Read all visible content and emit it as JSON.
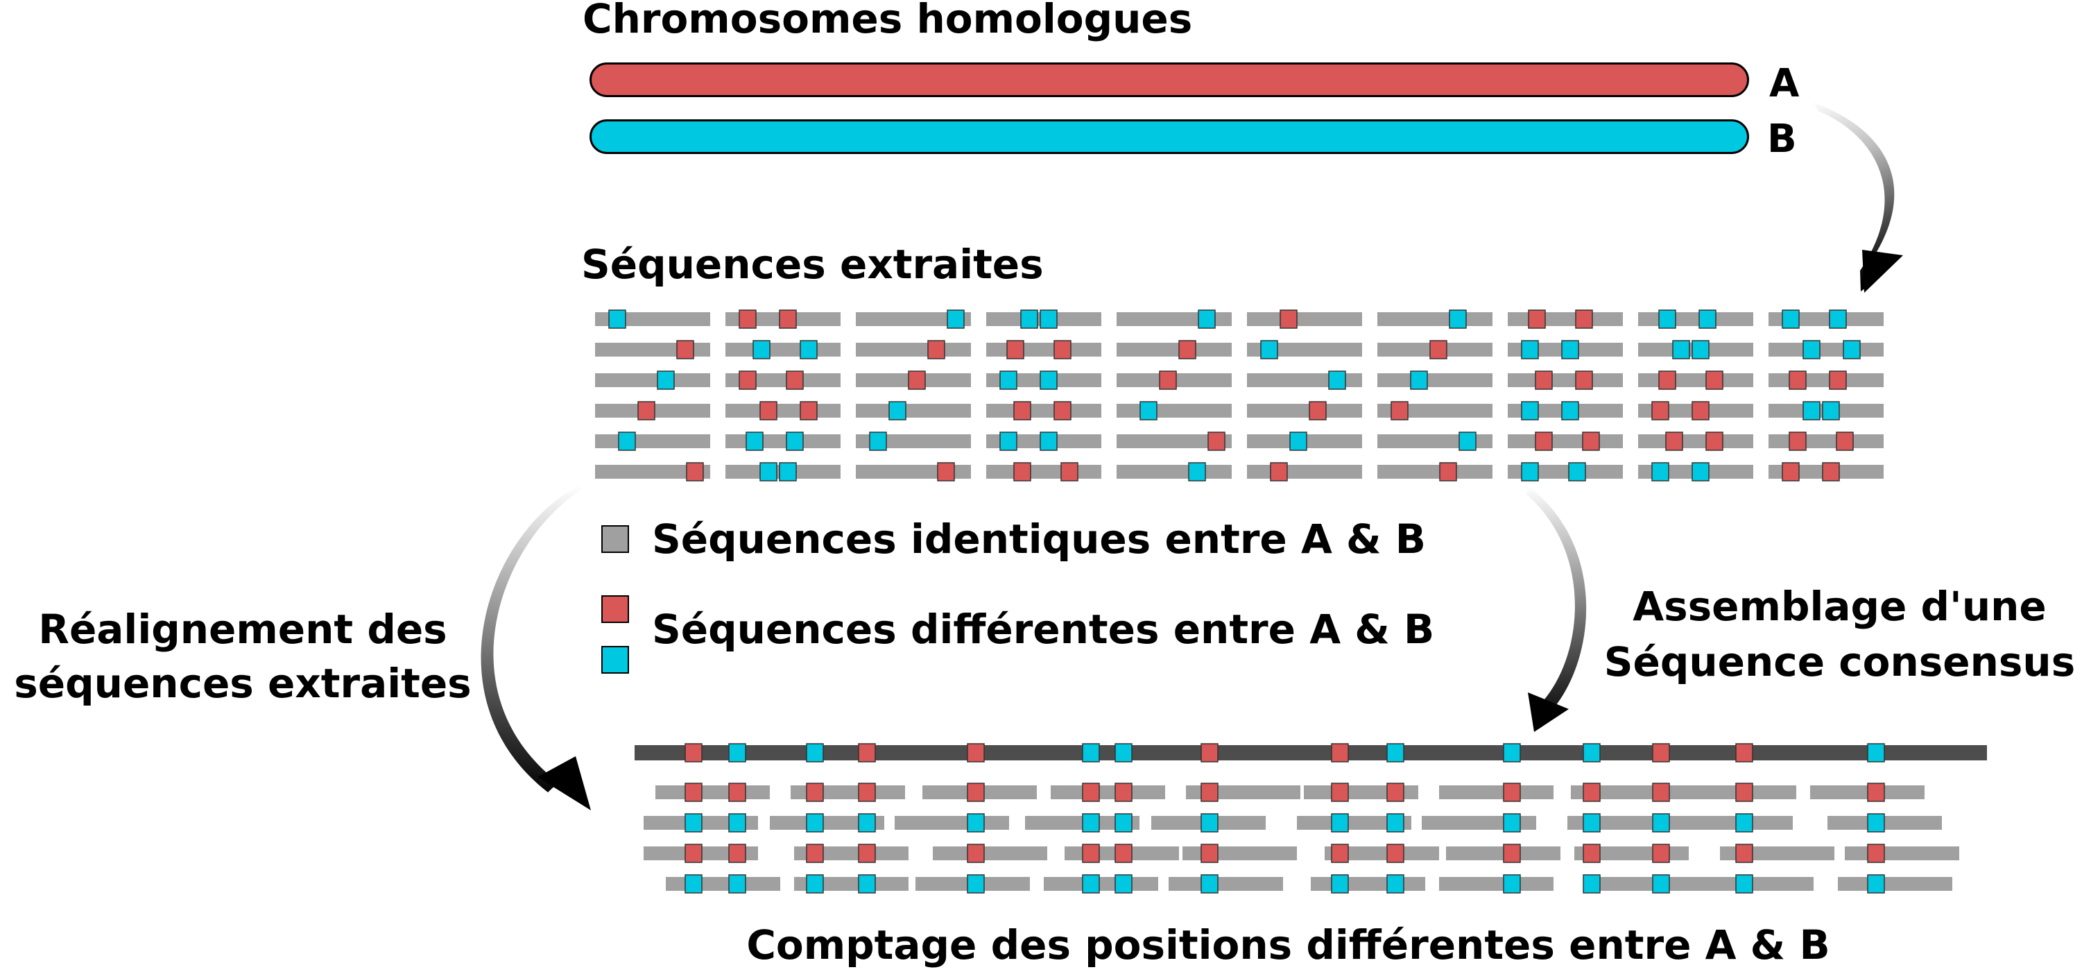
{
  "colors": {
    "chromosome_a": "#d95757",
    "chromosome_b": "#00c8e0",
    "identical": "#a0a0a0",
    "consensus": "#4d4d4d"
  },
  "titles": {
    "homologous": "Chromosomes homologues",
    "extracted": "Séquences extraites",
    "counting": "Comptage des positions différentes entre A & B"
  },
  "chromosomes": {
    "a_label": "A",
    "b_label": "B"
  },
  "legend": {
    "identical": "Séquences identiques entre A & B",
    "different": "Séquences différentes entre A & B"
  },
  "steps": {
    "realign_line1": "Réalignement des",
    "realign_line2": "séquences extraites",
    "assembly_line1": "Assemblage d'une",
    "assembly_line2": "Séquence consensus"
  },
  "extracted_grid": [
    [
      [
        "b"
      ],
      [
        "a",
        "a"
      ],
      [
        "b"
      ],
      [
        "b",
        "b"
      ],
      [
        "b"
      ],
      [
        "a"
      ],
      [
        "b"
      ],
      [
        "a",
        "a"
      ],
      [
        "b",
        "b"
      ],
      [
        "b",
        "b"
      ]
    ],
    [
      [
        "a"
      ],
      [
        "b",
        "b"
      ],
      [
        "a"
      ],
      [
        "a",
        "a"
      ],
      [
        "a"
      ],
      [
        "b"
      ],
      [
        "a"
      ],
      [
        "b",
        "b"
      ],
      [
        "b",
        "b"
      ],
      [
        "b",
        "b"
      ]
    ],
    [
      [
        "b"
      ],
      [
        "a",
        "a"
      ],
      [
        "a"
      ],
      [
        "b",
        "b"
      ],
      [
        "a"
      ],
      [
        "b"
      ],
      [
        "b"
      ],
      [
        "a",
        "a"
      ],
      [
        "a",
        "a"
      ],
      [
        "a",
        "a"
      ]
    ],
    [
      [
        "a"
      ],
      [
        "a",
        "a"
      ],
      [
        "b"
      ],
      [
        "a",
        "a"
      ],
      [
        "b"
      ],
      [
        "a"
      ],
      [
        "a"
      ],
      [
        "b",
        "b"
      ],
      [
        "a",
        "a"
      ],
      [
        "b",
        "b"
      ]
    ],
    [
      [
        "b"
      ],
      [
        "b",
        "b"
      ],
      [
        "b"
      ],
      [
        "b",
        "b"
      ],
      [
        "a"
      ],
      [
        "b"
      ],
      [
        "b"
      ],
      [
        "a",
        "a"
      ],
      [
        "a",
        "a"
      ],
      [
        "a",
        "a"
      ]
    ],
    [
      [
        "a"
      ],
      [
        "b",
        "b"
      ],
      [
        "a"
      ],
      [
        "a",
        "a"
      ],
      [
        "b"
      ],
      [
        "a"
      ],
      [
        "a"
      ],
      [
        "b",
        "b"
      ],
      [
        "b",
        "b"
      ],
      [
        "a",
        "a"
      ]
    ]
  ],
  "consensus_markers": [
    "a",
    "b",
    "b",
    "a",
    "a",
    "b",
    "b",
    "a",
    "a",
    "b",
    "b",
    "b",
    "a",
    "a",
    "b"
  ],
  "aligned_rows": [
    [
      "a",
      "a",
      "a",
      "a",
      "a",
      "a",
      "a",
      "a",
      "a",
      "a",
      "a",
      "a",
      "a",
      "a",
      "a"
    ],
    [
      "b",
      "b",
      "b",
      "b",
      "b",
      "b",
      "b",
      "b",
      "b",
      "b",
      "b",
      "b",
      "b",
      "b",
      "b"
    ],
    [
      "a",
      "a",
      "a",
      "a",
      "a",
      "a",
      "a",
      "a",
      "a",
      "a",
      "a",
      "a",
      "a",
      "a",
      "a"
    ],
    [
      "b",
      "b",
      "b",
      "b",
      "b",
      "b",
      "b",
      "b",
      "b",
      "b",
      "b",
      "b",
      "b",
      "b",
      "b"
    ]
  ]
}
